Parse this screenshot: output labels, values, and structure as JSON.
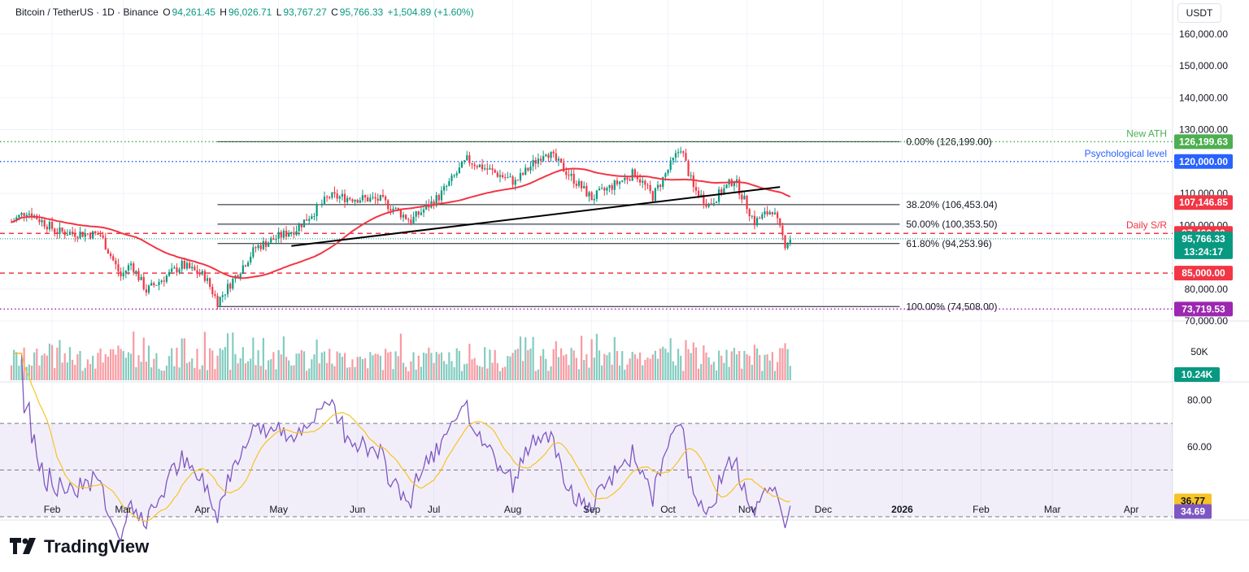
{
  "header": {
    "symbol": "Bitcoin / TetherUS · 1D · Binance",
    "open_label": "O",
    "open": "94,261.45",
    "high_label": "H",
    "high": "96,026.71",
    "low_label": "L",
    "low": "93,767.27",
    "close_label": "C",
    "close": "95,766.33",
    "change": "+1,504.89 (+1.60%)"
  },
  "currency_button": "USDT",
  "brand": "TradingView",
  "colors": {
    "up": "#089981",
    "down": "#f23645",
    "ma": "#f23645",
    "rsi": "#7e57c2",
    "rsi_ma": "#f7c325",
    "psych": "#2962ff",
    "ath": "#4caf50",
    "support": "#f23645"
  },
  "chart_data": [
    {
      "type": "candlestick",
      "title": "Bitcoin / TetherUS · 1D · Binance",
      "x_ticks": [
        "Feb",
        "Mar",
        "Apr",
        "May",
        "Jun",
        "Jul",
        "Aug",
        "Sep",
        "Oct",
        "Nov",
        "Dec",
        "2026",
        "Feb",
        "Mar",
        "Apr"
      ],
      "y_ticks": [
        "160,000.00",
        "150,000.00",
        "140,000.00",
        "130,000.00",
        "110,000.00",
        "100,000.00",
        "80,000.00",
        "70,000.00"
      ],
      "y_range": [
        70000,
        163000
      ],
      "price_path_monthly": [
        {
          "m": "Jan",
          "price": 102000
        },
        {
          "m": "Feb",
          "price": 97000
        },
        {
          "m": "Mar",
          "price": 82000
        },
        {
          "m": "Apr",
          "price": 84000
        },
        {
          "m": "May",
          "price": 96000
        },
        {
          "m": "Jun",
          "price": 106000
        },
        {
          "m": "Jul",
          "price": 117000
        },
        {
          "m": "Aug",
          "price": 112000
        },
        {
          "m": "Sep",
          "price": 113000
        },
        {
          "m": "Oct",
          "price": 110000
        },
        {
          "m": "Nov",
          "price": 95766
        }
      ],
      "fibonacci": [
        {
          "label": "0.00% (126,199.00)",
          "price": 126199
        },
        {
          "label": "38.20% (106,453.04)",
          "price": 106453.04
        },
        {
          "label": "50.00% (100,353.50)",
          "price": 100353.5
        },
        {
          "label": "61.80% (94,253.96)",
          "price": 94253.96
        },
        {
          "label": "100.00% (74,508.00)",
          "price": 74508
        }
      ],
      "levels": [
        {
          "name": "New ATH",
          "price": 126199.63,
          "tag": "126,199.63",
          "style": "dotted",
          "color": "#4caf50"
        },
        {
          "name": "Psychological level",
          "price": 120000,
          "tag": "120,000.00",
          "style": "dotted",
          "color": "#2962ff"
        },
        {
          "name": "Daily S/R",
          "price": 97460,
          "tag": "97,460.00",
          "style": "dashed",
          "color": "#f23645"
        },
        {
          "name": "",
          "price": 85000,
          "tag": "85,000.00",
          "style": "dashed",
          "color": "#f23645"
        },
        {
          "name": "",
          "price": 73719.53,
          "tag": "73,719.53",
          "style": "dotted",
          "color": "#9c27b0"
        }
      ],
      "ma_tag": "107,146.85",
      "ma_last": 107146.85,
      "last_price_tag": "95,766.33",
      "countdown": "13:24:17",
      "last_price": 95766.33
    },
    {
      "type": "bar",
      "title": "Volume",
      "y_ticks": [
        "50K"
      ],
      "last_tag": "10.24K"
    },
    {
      "type": "line",
      "title": "RSI",
      "y_ticks": [
        "80.00",
        "60.00"
      ],
      "y_range": [
        30,
        85
      ],
      "band": [
        30,
        70
      ],
      "rsi_last_tag": "34.69",
      "rsi_last": 34.69,
      "rsi_ma_last_tag": "36.77",
      "rsi_ma_last": 36.77
    }
  ]
}
